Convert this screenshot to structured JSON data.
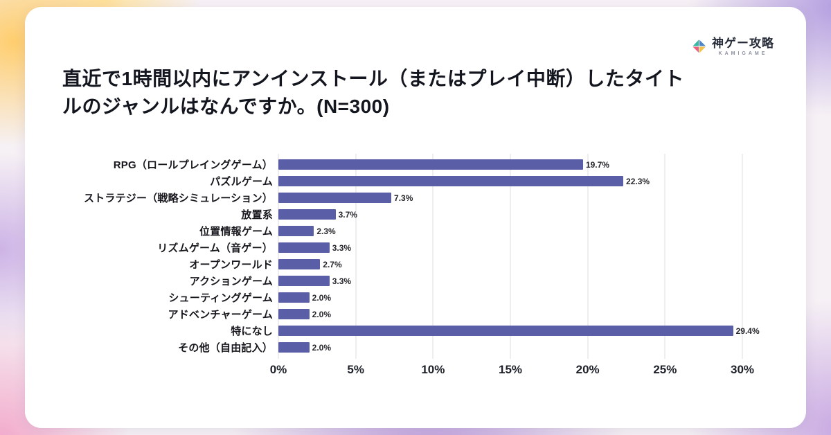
{
  "logo": {
    "brand": "神ゲー攻略",
    "sub": "KAMIGAME"
  },
  "title": "直近で1時間以内にアンインストール（またはプレイ中断）したタイトルのジャンルはなんですか。(N=300)",
  "chart_data": {
    "type": "bar",
    "orientation": "horizontal",
    "title": "直近で1時間以内にアンインストール（またはプレイ中断）したタイトルのジャンルはなんですか。(N=300)",
    "categories": [
      "RPG（ロールプレイングゲーム）",
      "パズルゲーム",
      "ストラテジー（戦略シミュレーション）",
      "放置系",
      "位置情報ゲーム",
      "リズムゲーム（音ゲー）",
      "オープンワールド",
      "アクションゲーム",
      "シューティングゲーム",
      "アドベンチャーゲーム",
      "特になし",
      "その他（自由記入）"
    ],
    "values": [
      19.7,
      22.3,
      7.3,
      3.7,
      2.3,
      3.3,
      2.7,
      3.3,
      2.0,
      2.0,
      29.4,
      2.0
    ],
    "value_labels": [
      "19.7%",
      "22.3%",
      "7.3%",
      "3.7%",
      "2.3%",
      "3.3%",
      "2.7%",
      "3.3%",
      "2.0%",
      "2.0%",
      "29.4%",
      "2.0%"
    ],
    "x_ticks": [
      "0%",
      "5%",
      "10%",
      "15%",
      "20%",
      "25%",
      "30%"
    ],
    "xlim": [
      0,
      30
    ],
    "bar_color": "#5a5ea6",
    "grid": true,
    "legend": false
  },
  "logo_colors": {
    "left": "#35b9a5",
    "top": "#4f86c6",
    "right": "#f2c14e",
    "bottom": "#ee6079"
  }
}
